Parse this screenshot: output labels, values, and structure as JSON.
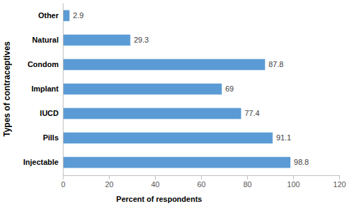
{
  "chart_data": {
    "type": "bar",
    "orientation": "horizontal",
    "categories": [
      "Other",
      "Natural",
      "Condom",
      "Implant",
      "IUCD",
      "Pills",
      "Injectable"
    ],
    "values": [
      2.9,
      29.3,
      87.8,
      69,
      77.4,
      91.1,
      98.8
    ],
    "color": "#5b9bd5",
    "x_label": "Percent of respondents",
    "y_label": "Types of contraceptives",
    "xlim": [
      0,
      120
    ],
    "xticks": [
      0,
      20,
      40,
      60,
      80,
      100,
      120
    ],
    "grid": false,
    "data_labels": true
  }
}
